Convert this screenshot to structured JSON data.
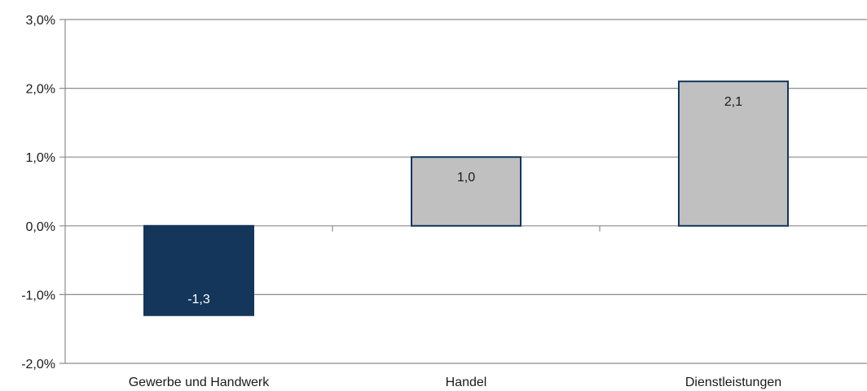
{
  "chart_data": {
    "type": "bar",
    "categories": [
      "Gewerbe und Handwerk",
      "Handel",
      "Dienstleistungen"
    ],
    "values": [
      -1.3,
      1.0,
      2.1
    ],
    "data_labels": [
      "-1,3",
      "1,0",
      "2,1"
    ],
    "ylim": [
      -2.0,
      3.0
    ],
    "yticks": [
      3.0,
      2.0,
      1.0,
      0.0,
      -1.0,
      -2.0
    ],
    "ytick_labels": [
      "3,0%",
      "2,0%",
      "1,0%",
      "0,0%",
      "-1,0%",
      "-2,0%"
    ],
    "grid": true,
    "colors": {
      "negative_fill": "#14365a",
      "positive_fill": "#c0c0c0",
      "bar_border": "#14365a",
      "negative_label": "#ffffff",
      "positive_label": "#1a1a1a",
      "grid": "#8c8c8c",
      "axis": "#8c8c8c"
    }
  }
}
